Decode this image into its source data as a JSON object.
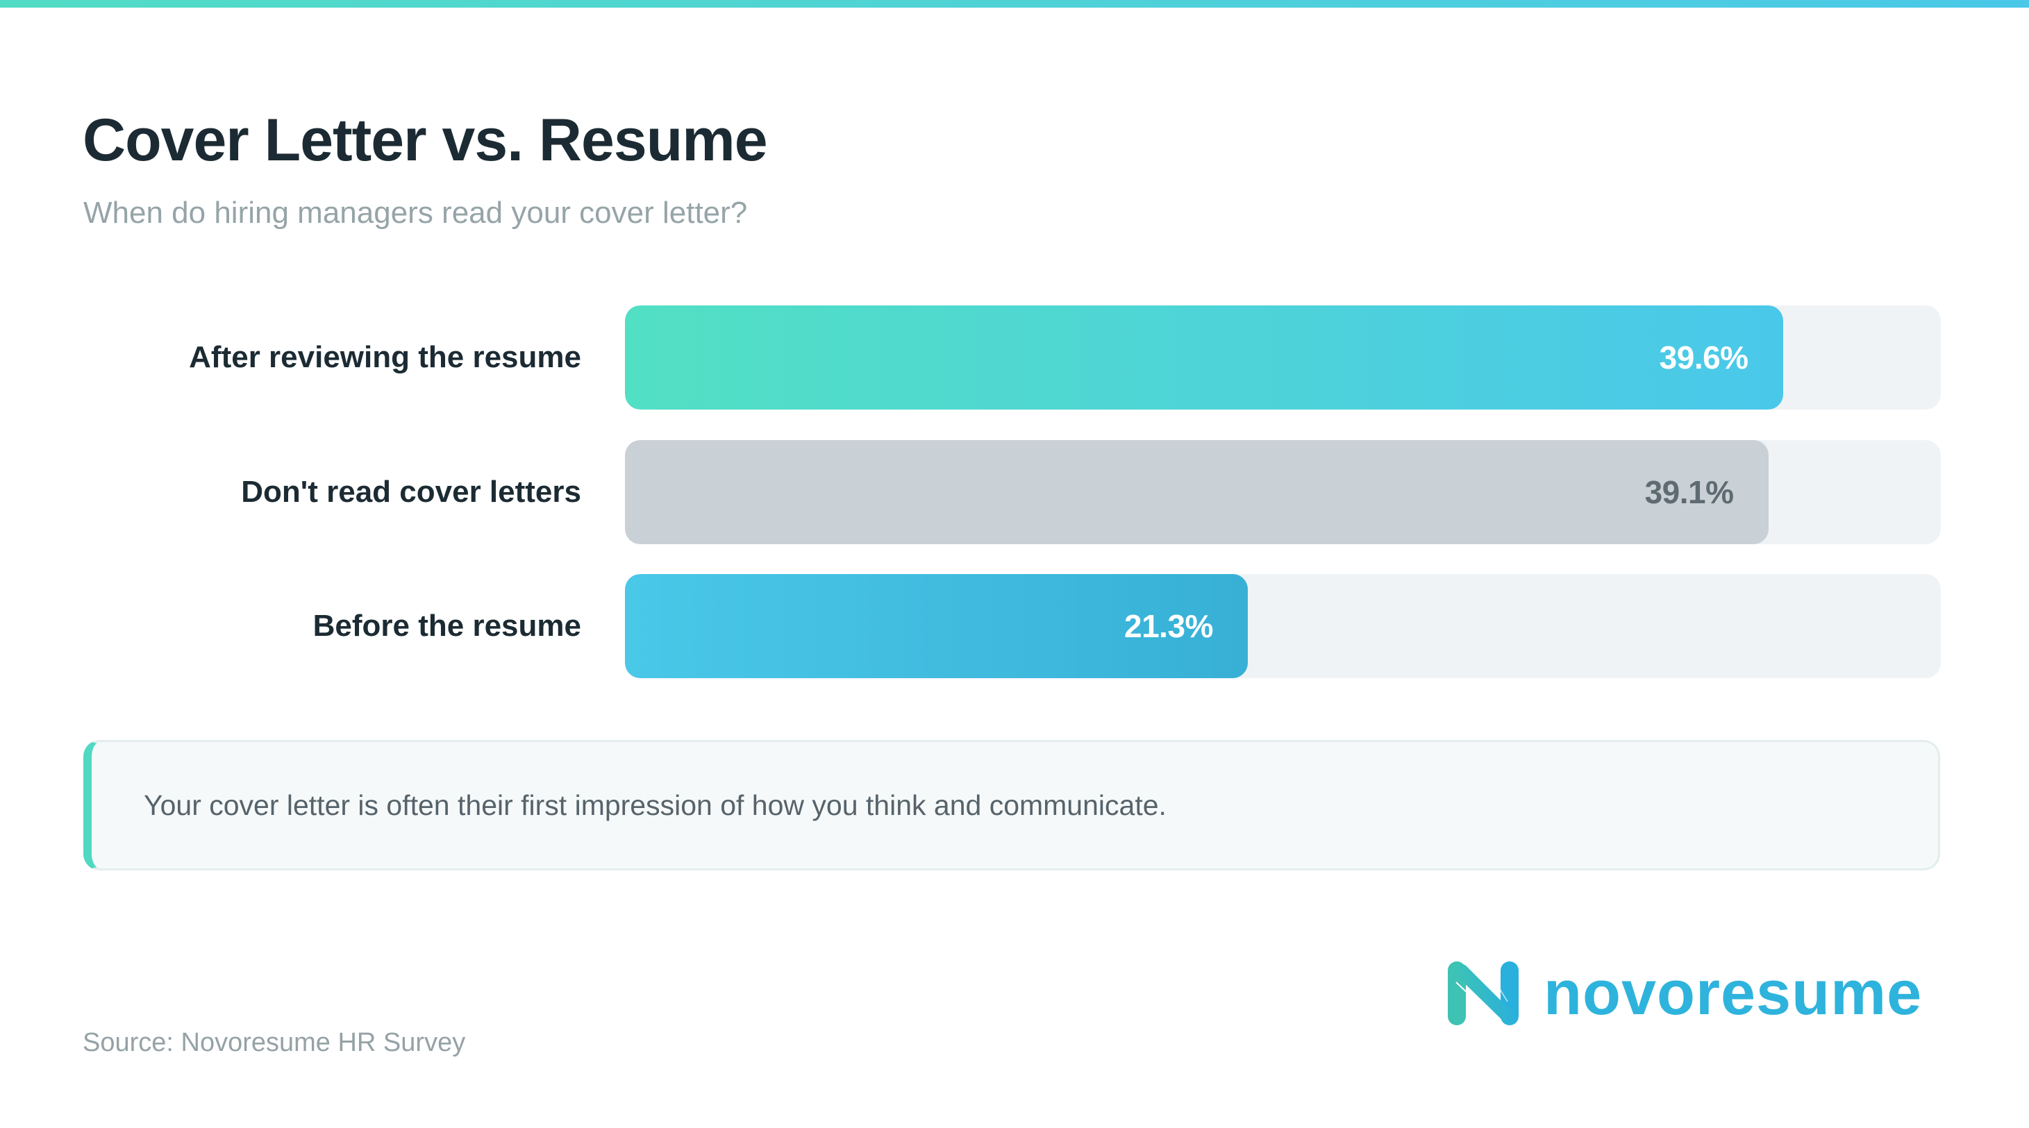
{
  "header": {
    "title": "Cover Letter vs. Resume",
    "subtitle": "When do hiring managers read your cover letter?"
  },
  "chart_data": {
    "type": "bar",
    "orientation": "horizontal",
    "title": "Cover Letter vs. Resume",
    "subtitle": "When do hiring managers read your cover letter?",
    "categories": [
      "After reviewing the resume",
      "Don't read cover letters",
      "Before the resume"
    ],
    "values": [
      39.6,
      39.1,
      21.3
    ],
    "value_labels": [
      "39.6%",
      "39.1%",
      "21.3%"
    ],
    "unit": "%",
    "xlabel": "",
    "ylabel": "",
    "xlim": [
      0,
      45
    ],
    "grid": false,
    "legend": "none",
    "bar_colors": [
      [
        "#52e0c4",
        "#4ac8ea"
      ],
      [
        "#c9d0d6",
        "#c9d0d6"
      ],
      [
        "#4ac8e8",
        "#38b0d6"
      ]
    ],
    "value_text_colors": [
      "#ffffff",
      "#5f6b72",
      "#ffffff"
    ],
    "track_color": "#f0f3f5"
  },
  "note": {
    "text": "Your cover letter is often their first impression of how you think and communicate.",
    "accent_color": "#50d8c2"
  },
  "footer": {
    "source": "Source: Novoresume HR Survey",
    "brand": "novoresume",
    "brand_color": "#2eb3dc"
  }
}
